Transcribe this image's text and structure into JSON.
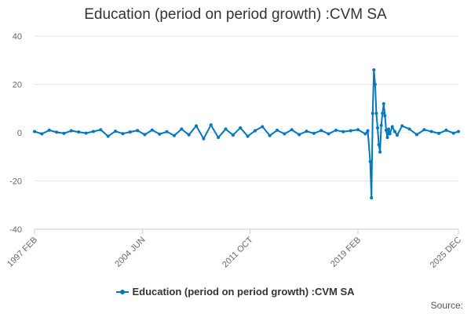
{
  "chart_data": {
    "type": "line",
    "title": "Education (period on period growth) :CVM SA",
    "xlabel": "",
    "ylabel": "",
    "ylim": [
      -40,
      40
    ],
    "y_ticks": [
      -40,
      -20,
      0,
      20,
      40
    ],
    "y_tick_labels": [
      "-40",
      "-20",
      "0",
      "20",
      "40"
    ],
    "x_range": [
      "1997-02",
      "2025-12"
    ],
    "x_ticks": [
      "1997-02",
      "2004-06",
      "2011-10",
      "2019-02",
      "2025-12"
    ],
    "x_tick_labels": [
      "1997 FEB",
      "2004 JUN",
      "2011 OCT",
      "2019 FEB",
      "2025 DEC"
    ],
    "grid": "horizontal",
    "legend_position": "bottom",
    "series": [
      {
        "name": "Education (period on period growth) :CVM SA",
        "color": "#0077be",
        "x": [
          "1997-02",
          "1997-08",
          "1998-02",
          "1998-08",
          "1999-02",
          "1999-08",
          "2000-02",
          "2000-08",
          "2001-02",
          "2001-08",
          "2002-02",
          "2002-08",
          "2003-02",
          "2003-08",
          "2004-02",
          "2004-08",
          "2005-02",
          "2005-08",
          "2006-02",
          "2006-08",
          "2007-02",
          "2007-08",
          "2008-02",
          "2008-08",
          "2009-02",
          "2009-08",
          "2010-02",
          "2010-08",
          "2011-02",
          "2011-08",
          "2012-02",
          "2012-08",
          "2013-02",
          "2013-08",
          "2014-02",
          "2014-08",
          "2015-02",
          "2015-08",
          "2016-02",
          "2016-08",
          "2017-02",
          "2017-08",
          "2018-02",
          "2018-08",
          "2019-02",
          "2019-08",
          "2019-10",
          "2019-12",
          "2020-01",
          "2020-02",
          "2020-03",
          "2020-04",
          "2020-05",
          "2020-06",
          "2020-07",
          "2020-08",
          "2020-09",
          "2020-10",
          "2020-11",
          "2020-12",
          "2021-01",
          "2021-02",
          "2021-03",
          "2021-04",
          "2021-06",
          "2021-08",
          "2021-10",
          "2022-02",
          "2022-08",
          "2023-02",
          "2023-08",
          "2024-02",
          "2024-08",
          "2025-02",
          "2025-08",
          "2025-12"
        ],
        "values": [
          0.5,
          -0.5,
          1.0,
          0.2,
          -0.3,
          0.8,
          0.3,
          -0.2,
          0.5,
          1.2,
          -1.5,
          0.6,
          -0.4,
          0.3,
          0.9,
          -0.8,
          1.1,
          -0.6,
          0.4,
          -1.2,
          1.5,
          -0.9,
          2.8,
          -2.5,
          3.2,
          -2.0,
          1.5,
          -1.0,
          2.0,
          -1.5,
          0.8,
          2.5,
          -1.2,
          1.0,
          -0.5,
          1.2,
          -0.8,
          0.6,
          -0.3,
          0.9,
          -0.5,
          1.0,
          0.4,
          0.8,
          1.2,
          -0.5,
          0.8,
          -12.0,
          -27.0,
          8.0,
          26.0,
          20.0,
          8.0,
          2.0,
          -5.0,
          -8.0,
          3.0,
          8.0,
          12.0,
          7.0,
          1.0,
          -2.0,
          1.5,
          -0.5,
          2.5,
          0.5,
          -1.0,
          2.8,
          1.5,
          -0.8,
          1.2,
          0.5,
          -0.3,
          1.0,
          -0.2,
          0.5
        ]
      }
    ]
  },
  "source_label": "Source:"
}
